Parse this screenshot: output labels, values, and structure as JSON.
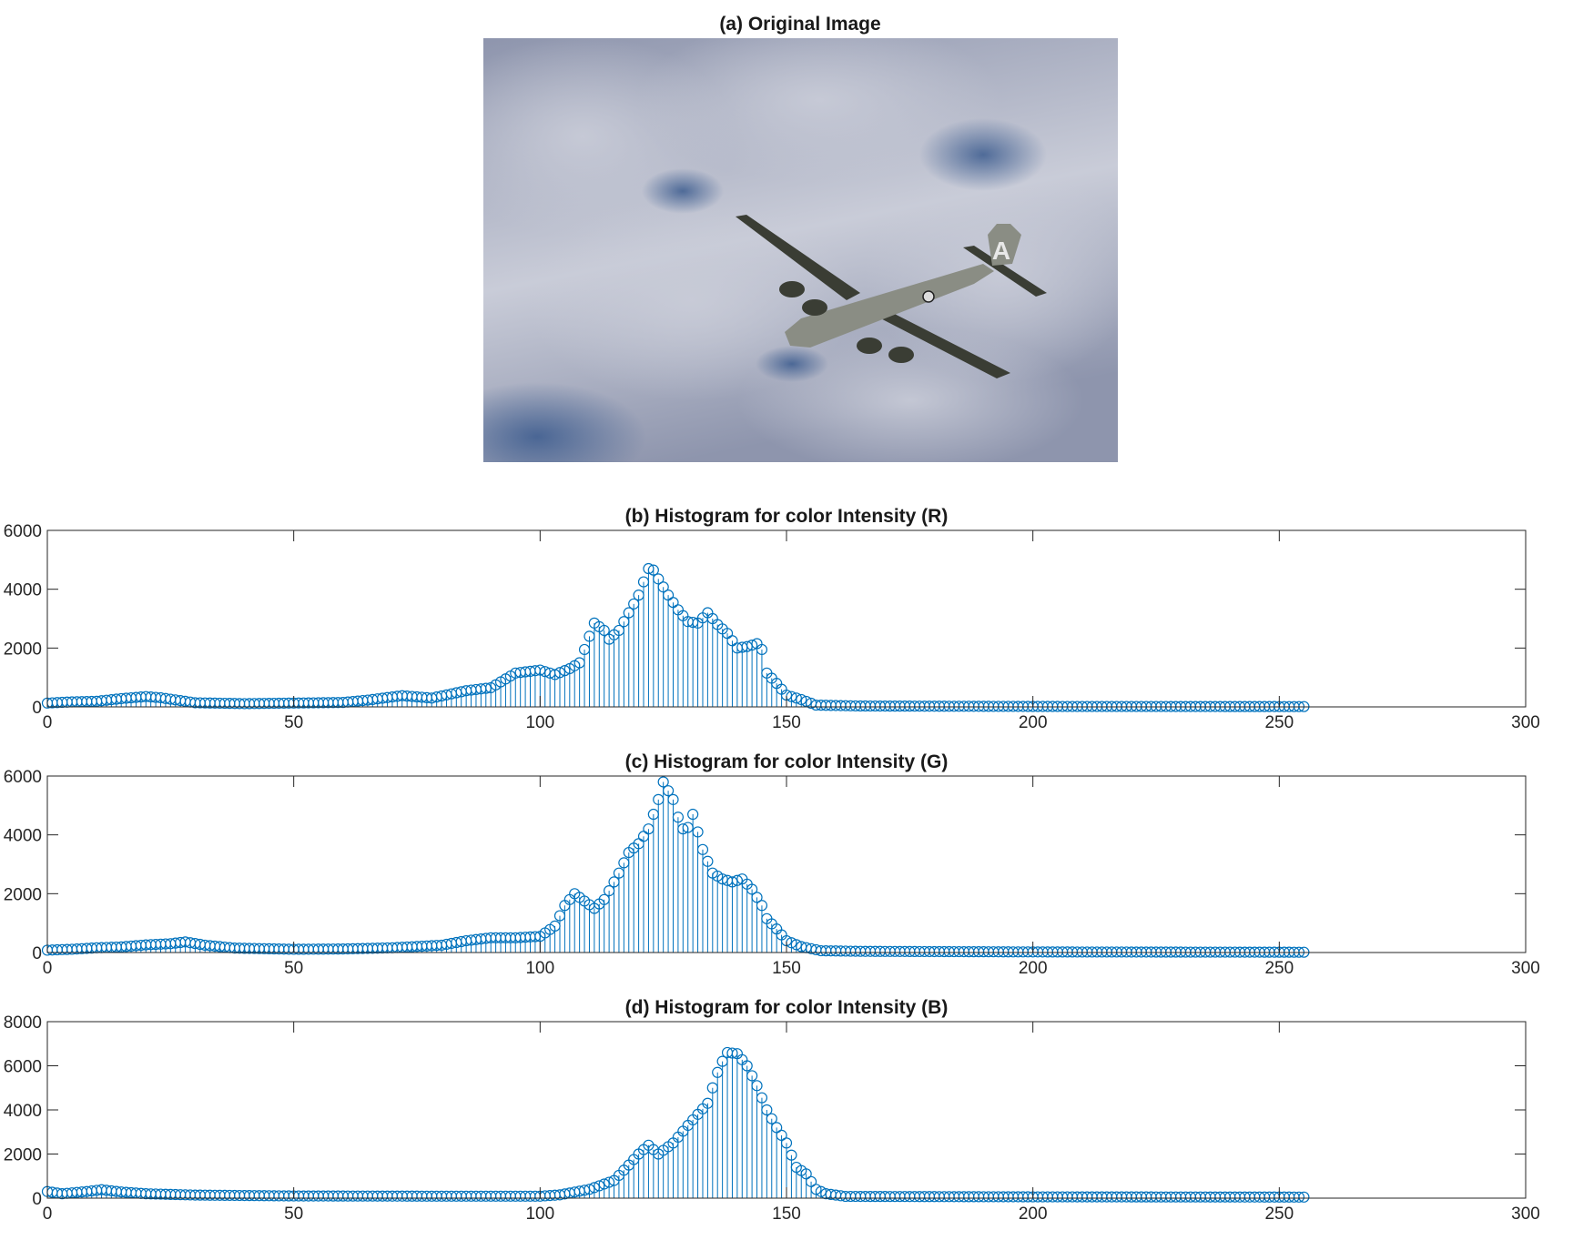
{
  "photo": {
    "title": "(a) Original Image",
    "colors": {
      "sky_light": "#c9ccd8",
      "sky_mid": "#8e95ad",
      "sky_dark": "#55627f",
      "sky_blue": "#3b5b8e",
      "plane": "#3a3d34",
      "plane_light": "#8a8d84",
      "tail_letter": "#e8e8e8"
    },
    "tail_letter": "A"
  },
  "chart_data": [
    {
      "type": "stem",
      "title": "(b) Histogram for color Intensity (R)",
      "xlim": [
        0,
        300
      ],
      "ylim": [
        0,
        6000
      ],
      "xticks": [
        0,
        50,
        100,
        150,
        200,
        250,
        300
      ],
      "yticks": [
        0,
        2000,
        4000,
        6000
      ],
      "ytick_labels": [
        "0",
        "2000",
        "4000",
        "6000"
      ],
      "color": "#0072BD",
      "x_range": [
        0,
        255
      ],
      "anchors": [
        [
          0,
          130
        ],
        [
          5,
          170
        ],
        [
          10,
          190
        ],
        [
          15,
          280
        ],
        [
          20,
          350
        ],
        [
          23,
          310
        ],
        [
          30,
          140
        ],
        [
          40,
          110
        ],
        [
          50,
          130
        ],
        [
          60,
          150
        ],
        [
          65,
          230
        ],
        [
          72,
          380
        ],
        [
          78,
          300
        ],
        [
          85,
          550
        ],
        [
          90,
          650
        ],
        [
          95,
          1150
        ],
        [
          100,
          1250
        ],
        [
          103,
          1100
        ],
        [
          106,
          1300
        ],
        [
          108,
          1500
        ],
        [
          111,
          2850
        ],
        [
          113,
          2600
        ],
        [
          114,
          2300
        ],
        [
          116,
          2600
        ],
        [
          120,
          3800
        ],
        [
          122,
          4700
        ],
        [
          123,
          4650
        ],
        [
          124,
          4350
        ],
        [
          126,
          3800
        ],
        [
          128,
          3300
        ],
        [
          130,
          2900
        ],
        [
          132,
          2850
        ],
        [
          134,
          3200
        ],
        [
          136,
          2800
        ],
        [
          138,
          2500
        ],
        [
          140,
          2000
        ],
        [
          142,
          2050
        ],
        [
          144,
          2150
        ],
        [
          145,
          1950
        ],
        [
          146,
          1150
        ],
        [
          148,
          800
        ],
        [
          150,
          400
        ],
        [
          153,
          250
        ],
        [
          156,
          60
        ],
        [
          165,
          30
        ],
        [
          200,
          15
        ],
        [
          255,
          10
        ]
      ]
    },
    {
      "type": "stem",
      "title": "(c) Histogram for color Intensity (G)",
      "xlim": [
        0,
        300
      ],
      "ylim": [
        0,
        6000
      ],
      "xticks": [
        0,
        50,
        100,
        150,
        200,
        250,
        300
      ],
      "yticks": [
        0,
        2000,
        4000,
        6000
      ],
      "ytick_labels": [
        "0",
        "2000",
        "4000",
        "6000"
      ],
      "color": "#0072BD",
      "x_range": [
        0,
        255
      ],
      "anchors": [
        [
          0,
          80
        ],
        [
          5,
          110
        ],
        [
          10,
          160
        ],
        [
          15,
          190
        ],
        [
          20,
          260
        ],
        [
          25,
          300
        ],
        [
          28,
          360
        ],
        [
          32,
          250
        ],
        [
          38,
          150
        ],
        [
          50,
          110
        ],
        [
          60,
          120
        ],
        [
          70,
          160
        ],
        [
          80,
          250
        ],
        [
          85,
          400
        ],
        [
          90,
          500
        ],
        [
          95,
          500
        ],
        [
          100,
          550
        ],
        [
          103,
          900
        ],
        [
          105,
          1600
        ],
        [
          107,
          2000
        ],
        [
          109,
          1750
        ],
        [
          111,
          1500
        ],
        [
          113,
          1800
        ],
        [
          116,
          2700
        ],
        [
          118,
          3400
        ],
        [
          120,
          3700
        ],
        [
          122,
          4200
        ],
        [
          124,
          5200
        ],
        [
          125,
          5800
        ],
        [
          126,
          5500
        ],
        [
          127,
          5200
        ],
        [
          128,
          4600
        ],
        [
          129,
          4200
        ],
        [
          130,
          4250
        ],
        [
          131,
          4700
        ],
        [
          133,
          3500
        ],
        [
          135,
          2700
        ],
        [
          137,
          2500
        ],
        [
          139,
          2400
        ],
        [
          141,
          2500
        ],
        [
          143,
          2150
        ],
        [
          145,
          1600
        ],
        [
          146,
          1150
        ],
        [
          148,
          800
        ],
        [
          150,
          400
        ],
        [
          153,
          200
        ],
        [
          157,
          60
        ],
        [
          165,
          40
        ],
        [
          200,
          20
        ],
        [
          255,
          10
        ]
      ]
    },
    {
      "type": "stem",
      "title": "(d) Histogram for color Intensity (B)",
      "xlim": [
        0,
        300
      ],
      "ylim": [
        0,
        8000
      ],
      "xticks": [
        0,
        50,
        100,
        150,
        200,
        250,
        300
      ],
      "yticks": [
        0,
        2000,
        4000,
        6000,
        8000
      ],
      "ytick_labels": [
        "0",
        "2000",
        "4000",
        "6000",
        "8000"
      ],
      "color": "#0072BD",
      "x_range": [
        0,
        255
      ],
      "anchors": [
        [
          0,
          300
        ],
        [
          3,
          200
        ],
        [
          8,
          300
        ],
        [
          11,
          380
        ],
        [
          15,
          280
        ],
        [
          20,
          200
        ],
        [
          30,
          140
        ],
        [
          50,
          100
        ],
        [
          80,
          90
        ],
        [
          100,
          90
        ],
        [
          104,
          150
        ],
        [
          110,
          400
        ],
        [
          115,
          800
        ],
        [
          118,
          1500
        ],
        [
          120,
          2000
        ],
        [
          122,
          2400
        ],
        [
          124,
          2000
        ],
        [
          127,
          2500
        ],
        [
          130,
          3300
        ],
        [
          132,
          3800
        ],
        [
          134,
          4300
        ],
        [
          136,
          5700
        ],
        [
          137,
          6200
        ],
        [
          138,
          6600
        ],
        [
          140,
          6550
        ],
        [
          142,
          6000
        ],
        [
          144,
          5100
        ],
        [
          146,
          4000
        ],
        [
          148,
          3200
        ],
        [
          150,
          2500
        ],
        [
          152,
          1400
        ],
        [
          154,
          1100
        ],
        [
          156,
          400
        ],
        [
          158,
          200
        ],
        [
          162,
          80
        ],
        [
          200,
          60
        ],
        [
          255,
          50
        ]
      ]
    }
  ]
}
